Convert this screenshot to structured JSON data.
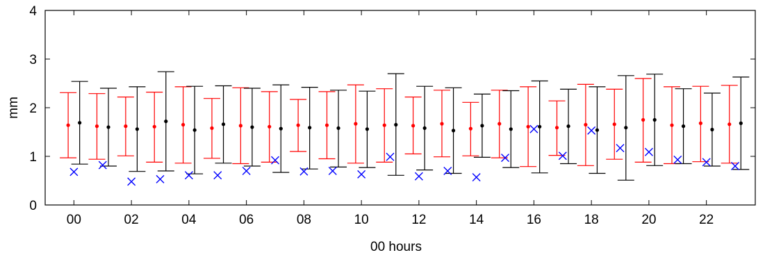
{
  "chart_data": {
    "type": "scatter",
    "title": "",
    "xlabel": "00 hours",
    "ylabel": "mm",
    "xlim": [
      -1,
      23.7
    ],
    "ylim": [
      0,
      4
    ],
    "xticks": [
      0,
      2,
      4,
      6,
      8,
      10,
      12,
      14,
      16,
      18,
      20,
      22
    ],
    "xtick_labels": [
      "00",
      "02",
      "04",
      "06",
      "08",
      "10",
      "12",
      "14",
      "16",
      "18",
      "20",
      "22"
    ],
    "yticks": [
      0,
      1,
      2,
      3,
      4
    ],
    "ytick_labels": [
      "0",
      "1",
      "2",
      "3",
      "4"
    ],
    "grid": false,
    "legend": "none",
    "series": [
      {
        "marker": "dot-with-errorbar",
        "color": "#ff0000",
        "x_offset": -0.2,
        "mean": [
          1.64,
          1.62,
          1.62,
          1.61,
          1.65,
          1.58,
          1.63,
          1.61,
          1.64,
          1.64,
          1.67,
          1.64,
          1.63,
          1.67,
          1.57,
          1.67,
          1.61,
          1.59,
          1.65,
          1.66,
          1.75,
          1.64,
          1.68,
          1.66
        ],
        "lower": [
          0.97,
          0.94,
          1.01,
          0.88,
          0.86,
          0.96,
          0.85,
          0.88,
          1.1,
          0.95,
          0.86,
          0.88,
          1.05,
          0.99,
          1.01,
          0.97,
          0.79,
          1.02,
          0.81,
          0.94,
          0.88,
          0.85,
          0.89,
          0.86
        ],
        "upper": [
          2.31,
          2.29,
          2.22,
          2.32,
          2.43,
          2.19,
          2.41,
          2.33,
          2.17,
          2.33,
          2.47,
          2.39,
          2.22,
          2.36,
          2.11,
          2.36,
          2.43,
          2.14,
          2.48,
          2.38,
          2.6,
          2.43,
          2.44,
          2.46
        ]
      },
      {
        "marker": "dot-with-errorbar",
        "color": "#000000",
        "x_offset": 0.2,
        "mean": [
          1.69,
          1.6,
          1.56,
          1.72,
          1.54,
          1.66,
          1.6,
          1.57,
          1.59,
          1.58,
          1.56,
          1.65,
          1.58,
          1.53,
          1.63,
          1.56,
          1.61,
          1.62,
          1.54,
          1.59,
          1.75,
          1.62,
          1.55,
          1.68
        ],
        "lower": [
          0.84,
          0.8,
          0.69,
          0.7,
          0.64,
          0.86,
          0.8,
          0.67,
          0.74,
          0.78,
          0.77,
          0.61,
          0.72,
          0.65,
          0.98,
          0.77,
          0.66,
          0.85,
          0.65,
          0.51,
          0.81,
          0.85,
          0.8,
          0.73
        ],
        "upper": [
          2.54,
          2.4,
          2.43,
          2.74,
          2.44,
          2.45,
          2.4,
          2.47,
          2.42,
          2.36,
          2.34,
          2.7,
          2.44,
          2.41,
          2.28,
          2.35,
          2.55,
          2.38,
          2.43,
          2.66,
          2.69,
          2.39,
          2.3,
          2.63
        ]
      },
      {
        "marker": "x",
        "color": "#0000ff",
        "x_offset": 0,
        "values": [
          0.68,
          0.82,
          0.48,
          0.53,
          0.61,
          0.61,
          0.7,
          0.92,
          0.69,
          0.7,
          0.63,
          0.99,
          0.59,
          0.7,
          0.57,
          0.97,
          1.56,
          1.01,
          1.53,
          1.17,
          1.09,
          0.93,
          0.88,
          0.8
        ]
      }
    ],
    "x": [
      0,
      1,
      2,
      3,
      4,
      5,
      6,
      7,
      8,
      9,
      10,
      11,
      12,
      13,
      14,
      15,
      16,
      17,
      18,
      19,
      20,
      21,
      22,
      23
    ]
  }
}
